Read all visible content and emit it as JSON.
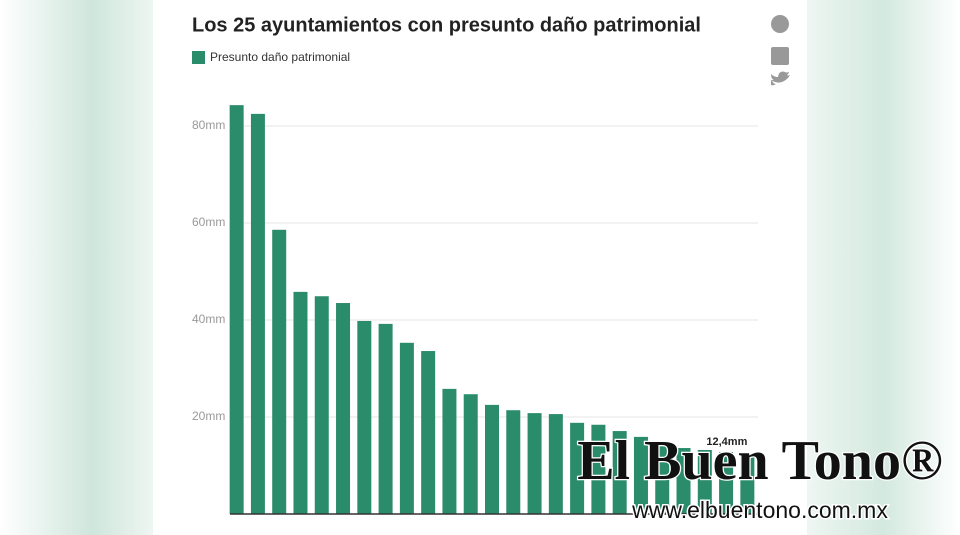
{
  "chart_data": {
    "type": "bar",
    "title": "Los 25 ayuntamientos con presunto daño patrimonial",
    "series": [
      {
        "name": "Presunto daño patrimonial",
        "color": "#2b8c6c",
        "values": [
          84.3,
          82.5,
          58.6,
          45.8,
          44.9,
          43.5,
          39.8,
          39.2,
          35.3,
          33.6,
          25.8,
          24.7,
          22.5,
          21.4,
          20.8,
          20.6,
          18.8,
          18.4,
          17.1,
          15.9,
          14.2,
          13.6,
          13.2,
          12.8,
          12.4
        ],
        "value_labels": [
          null,
          null,
          null,
          null,
          null,
          null,
          null,
          null,
          null,
          null,
          null,
          null,
          null,
          null,
          null,
          null,
          null,
          null,
          null,
          null,
          null,
          null,
          null,
          null,
          "12,4mm"
        ]
      }
    ],
    "categories": [
      null,
      null,
      null,
      null,
      null,
      null,
      null,
      null,
      null,
      null,
      null,
      null,
      null,
      null,
      null,
      null,
      null,
      null,
      null,
      null,
      null,
      null,
      null,
      null,
      null
    ],
    "ylim": [
      0,
      85
    ],
    "yticks": [
      {
        "value": 20,
        "label": "20mm"
      },
      {
        "value": 40,
        "label": "40mm"
      },
      {
        "value": 60,
        "label": "60mm"
      },
      {
        "value": 80,
        "label": "80mm"
      }
    ],
    "grid": true
  },
  "watermark": {
    "brand": "El Buen Tono®",
    "url": "www.elbuentono.com.mx"
  }
}
